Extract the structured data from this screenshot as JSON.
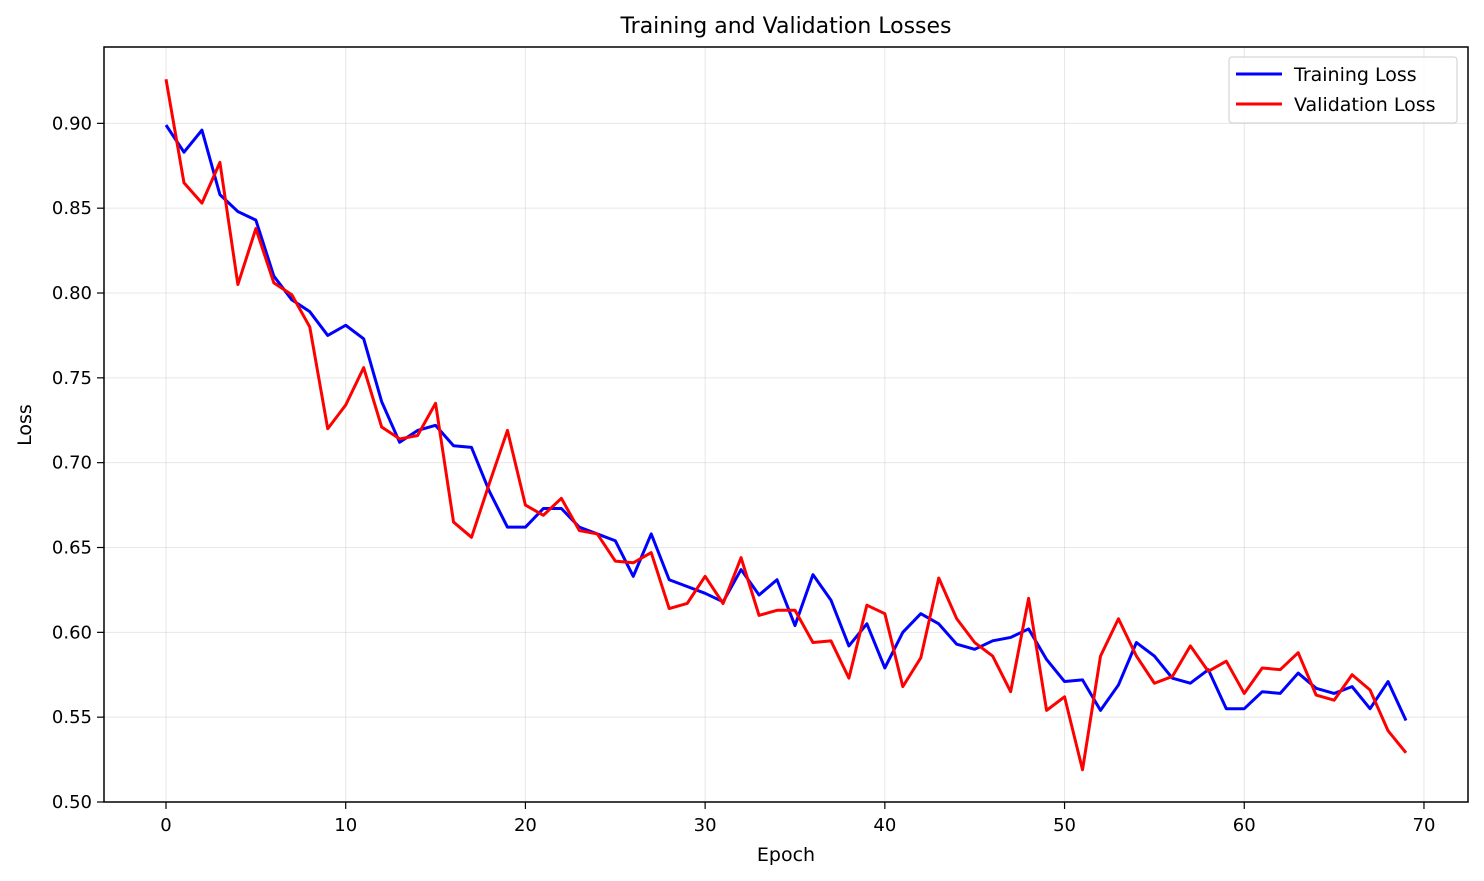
{
  "chart_data": {
    "type": "line",
    "title": "Training and Validation Losses",
    "xlabel": "Epoch",
    "ylabel": "Loss",
    "xlim": [
      -3.45,
      72.45
    ],
    "ylim": [
      0.5,
      0.945
    ],
    "xticks": [
      0,
      10,
      20,
      30,
      40,
      50,
      60,
      70
    ],
    "xtick_labels": [
      "0",
      "10",
      "20",
      "30",
      "40",
      "50",
      "60",
      "70"
    ],
    "yticks": [
      0.5,
      0.55,
      0.6,
      0.65,
      0.7,
      0.75,
      0.8,
      0.85,
      0.9
    ],
    "ytick_labels": [
      "0.50",
      "0.55",
      "0.60",
      "0.65",
      "0.70",
      "0.75",
      "0.80",
      "0.85",
      "0.90"
    ],
    "grid": true,
    "legend_position": "top-right",
    "x": [
      0,
      1,
      2,
      3,
      4,
      5,
      6,
      7,
      8,
      9,
      10,
      11,
      12,
      13,
      14,
      15,
      16,
      17,
      18,
      19,
      20,
      21,
      22,
      23,
      24,
      25,
      26,
      27,
      28,
      29,
      30,
      31,
      32,
      33,
      34,
      35,
      36,
      37,
      38,
      39,
      40,
      41,
      42,
      43,
      44,
      45,
      46,
      47,
      48,
      49,
      50,
      51,
      52,
      53,
      54,
      55,
      56,
      57,
      58,
      59,
      60,
      61,
      62,
      63,
      64,
      65,
      66,
      67,
      68,
      69
    ],
    "series": [
      {
        "name": "Training Loss",
        "color": "#0000ff",
        "values": [
          0.899,
          0.883,
          0.896,
          0.858,
          0.848,
          0.843,
          0.81,
          0.796,
          0.789,
          0.775,
          0.781,
          0.773,
          0.736,
          0.712,
          0.719,
          0.722,
          0.71,
          0.709,
          0.683,
          0.662,
          0.662,
          0.673,
          0.673,
          0.662,
          0.658,
          0.654,
          0.633,
          0.658,
          0.631,
          0.627,
          0.623,
          0.618,
          0.637,
          0.622,
          0.631,
          0.604,
          0.634,
          0.619,
          0.592,
          0.605,
          0.579,
          0.6,
          0.611,
          0.605,
          0.593,
          0.59,
          0.595,
          0.597,
          0.602,
          0.584,
          0.571,
          0.572,
          0.554,
          0.569,
          0.594,
          0.586,
          0.573,
          0.57,
          0.578,
          0.555,
          0.555,
          0.565,
          0.564,
          0.576,
          0.567,
          0.564,
          0.568,
          0.555,
          0.571,
          0.548
        ]
      },
      {
        "name": "Validation Loss",
        "color": "#ff0000",
        "values": [
          0.926,
          0.865,
          0.853,
          0.877,
          0.805,
          0.838,
          0.806,
          0.799,
          0.78,
          0.72,
          0.734,
          0.756,
          0.721,
          0.714,
          0.716,
          0.735,
          0.665,
          0.656,
          0.688,
          0.719,
          0.675,
          0.669,
          0.679,
          0.66,
          0.658,
          0.642,
          0.641,
          0.647,
          0.614,
          0.617,
          0.633,
          0.617,
          0.644,
          0.61,
          0.613,
          0.613,
          0.594,
          0.595,
          0.573,
          0.616,
          0.611,
          0.568,
          0.585,
          0.632,
          0.608,
          0.594,
          0.586,
          0.565,
          0.62,
          0.554,
          0.562,
          0.519,
          0.586,
          0.608,
          0.586,
          0.57,
          0.574,
          0.592,
          0.577,
          0.583,
          0.564,
          0.579,
          0.578,
          0.588,
          0.563,
          0.56,
          0.575,
          0.566,
          0.542,
          0.529
        ]
      }
    ]
  }
}
